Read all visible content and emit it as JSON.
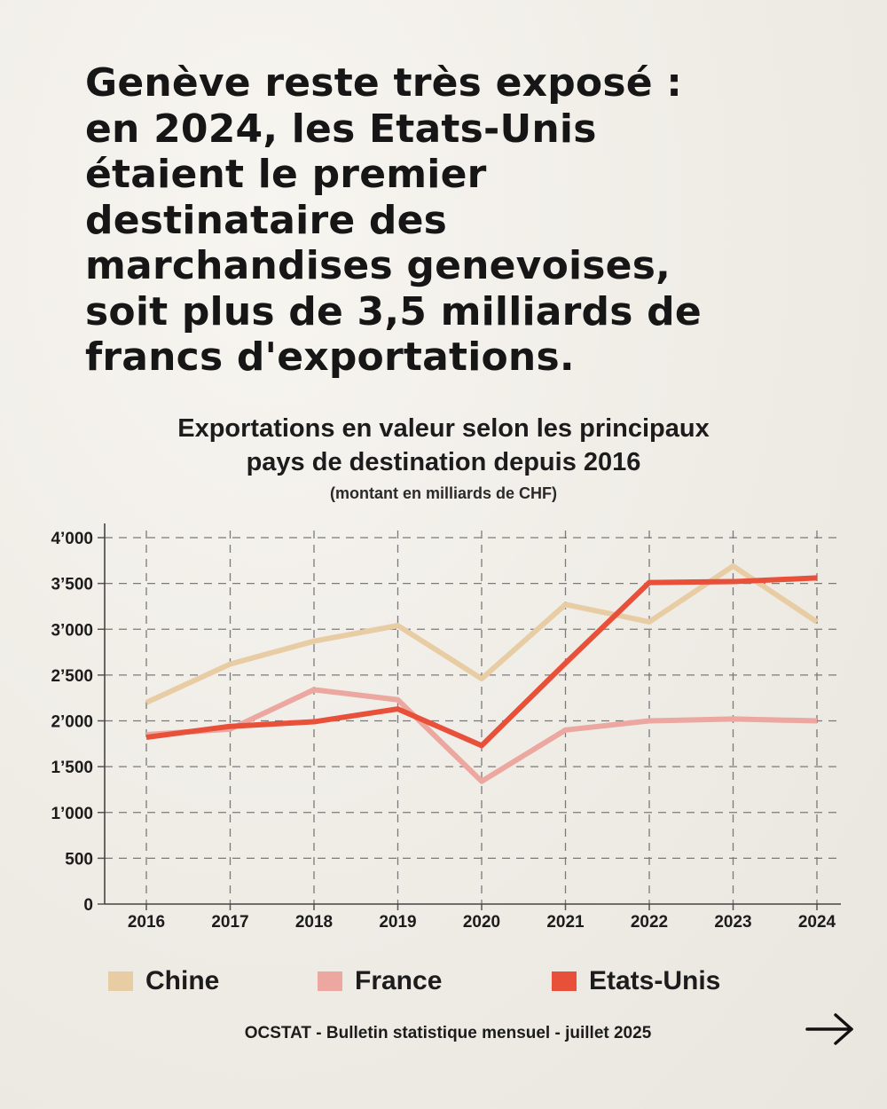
{
  "headline": {
    "lines": [
      "Genève reste très exposé :",
      "en 2024, les Etats-Unis",
      "étaient le premier",
      "destinataire des",
      "marchandises genevoises,",
      "soit plus de 3,5 milliards de",
      "francs d'exportations."
    ]
  },
  "chart_data": {
    "type": "line",
    "title_lines": [
      "Exportations en valeur selon les principaux",
      "pays de destination depuis 2016"
    ],
    "subtitle": "(montant en milliards de CHF)",
    "x": [
      "2016",
      "2017",
      "2018",
      "2019",
      "2020",
      "2021",
      "2022",
      "2023",
      "2024"
    ],
    "y_ticks": [
      0,
      500,
      1000,
      1500,
      2000,
      2500,
      3000,
      3500,
      4000
    ],
    "y_tick_labels": [
      "0",
      "500",
      "1’000",
      "1’500",
      "2’000",
      "2’500",
      "3’000",
      "3’500",
      "4’000"
    ],
    "ylim": [
      0,
      4000
    ],
    "grid": true,
    "legend_position": "bottom",
    "series": [
      {
        "name": "Chine",
        "color": "#e8cca3",
        "values": [
          2200,
          2620,
          2870,
          3040,
          2460,
          3270,
          3080,
          3690,
          3080
        ]
      },
      {
        "name": "France",
        "color": "#eba7a0",
        "values": [
          1850,
          1910,
          2340,
          2230,
          1340,
          1900,
          2000,
          2020,
          2000
        ]
      },
      {
        "name": "Etats-Unis",
        "color": "#e8503a",
        "values": [
          1820,
          1940,
          1990,
          2130,
          1730,
          2630,
          3510,
          3520,
          3560
        ]
      }
    ]
  },
  "source": "OCSTAT - Bulletin statistique mensuel - juillet 2025",
  "nav": {
    "next_icon": "arrow-right-icon"
  }
}
